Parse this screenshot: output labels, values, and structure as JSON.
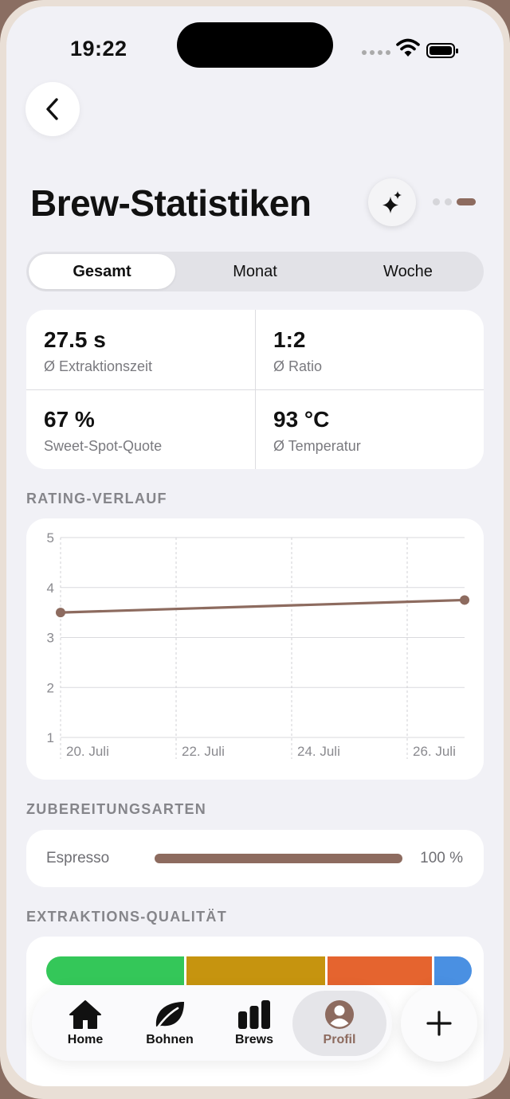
{
  "status_bar": {
    "time": "19:22"
  },
  "header": {
    "title": "Brew-Statistiken"
  },
  "segments": [
    {
      "label": "Gesamt",
      "selected": true
    },
    {
      "label": "Monat",
      "selected": false
    },
    {
      "label": "Woche",
      "selected": false
    }
  ],
  "stats": [
    {
      "value": "27.5 s",
      "label": "Ø Extraktionszeit"
    },
    {
      "value": "1:2",
      "label": "Ø Ratio"
    },
    {
      "value": "67 %",
      "label": "Sweet-Spot-Quote"
    },
    {
      "value": "93 °C",
      "label": "Ø Temperatur"
    }
  ],
  "sections": {
    "rating": "RATING-VERLAUF",
    "prep": "ZUBEREITUNGSARTEN",
    "quality": "EXTRAKTIONS-QUALITÄT"
  },
  "chart_data": {
    "type": "line",
    "x": [
      "20. Juli",
      "26. Juli"
    ],
    "series": [
      {
        "values": [
          3.5,
          3.75
        ]
      }
    ],
    "x_ticks": [
      "20. Juli",
      "22. Juli",
      "24. Juli",
      "26. Juli"
    ],
    "y_ticks": [
      "5",
      "4",
      "3",
      "2",
      "1"
    ],
    "ylim": [
      1,
      5
    ],
    "grid": true,
    "line_color": "#8d6b5f"
  },
  "preparation": [
    {
      "label": "Espresso",
      "percent_text": "100 %",
      "fraction": 1.0
    }
  ],
  "quality_bar": [
    {
      "fraction": 0.33,
      "color": "#34c759"
    },
    {
      "fraction": 0.33,
      "color": "#c6940f"
    },
    {
      "fraction": 0.25,
      "color": "#e5642f"
    },
    {
      "fraction": 0.09,
      "color": "#4a90e2"
    }
  ],
  "tabs": [
    {
      "label": "Home",
      "icon": "house-icon"
    },
    {
      "label": "Bohnen",
      "icon": "leaf-icon"
    },
    {
      "label": "Brews",
      "icon": "bar-chart-icon"
    },
    {
      "label": "Profil",
      "icon": "person-icon",
      "selected": true
    }
  ],
  "colors": {
    "accent": "#8d6b5f",
    "background": "#f1f1f6"
  }
}
